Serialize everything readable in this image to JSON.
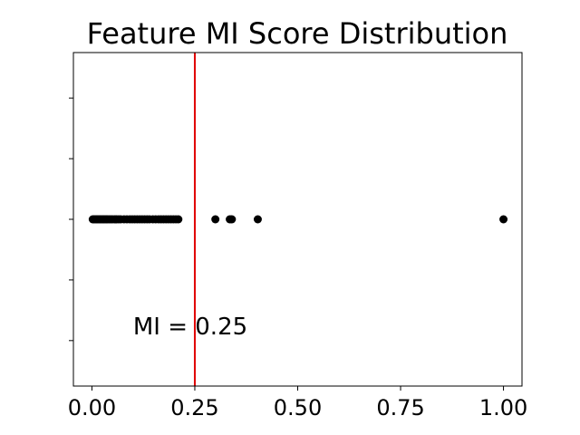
{
  "chart_data": {
    "type": "scatter",
    "title": "Feature MI Score Distribution",
    "xlabel": "",
    "ylabel": "",
    "xlim": [
      -0.045,
      1.045
    ],
    "ylim": [
      -2.75,
      2.75
    ],
    "xticks": [
      0.0,
      0.25,
      0.5,
      0.75,
      1.0
    ],
    "xtick_labels": [
      "0.00",
      "0.25",
      "0.50",
      "0.75",
      "1.00"
    ],
    "yticks": [
      -2,
      -1,
      0,
      1,
      2
    ],
    "ytick_labels_visible": false,
    "grid": false,
    "marker_color": "#000000",
    "threshold_color": "#e00000",
    "threshold": {
      "x": 0.25,
      "label": "MI = 0.25",
      "label_x": 0.1,
      "label_y": -1.9
    },
    "points": {
      "y": 0,
      "x": [
        0.002,
        0.005,
        0.008,
        0.011,
        0.014,
        0.017,
        0.02,
        0.023,
        0.026,
        0.029,
        0.032,
        0.035,
        0.038,
        0.042,
        0.046,
        0.05,
        0.055,
        0.06,
        0.065,
        0.07,
        0.078,
        0.085,
        0.092,
        0.098,
        0.104,
        0.11,
        0.116,
        0.122,
        0.128,
        0.134,
        0.14,
        0.148,
        0.155,
        0.162,
        0.168,
        0.174,
        0.18,
        0.186,
        0.192,
        0.198,
        0.204,
        0.21,
        0.3,
        0.335,
        0.34,
        0.403,
        1.0
      ]
    }
  }
}
